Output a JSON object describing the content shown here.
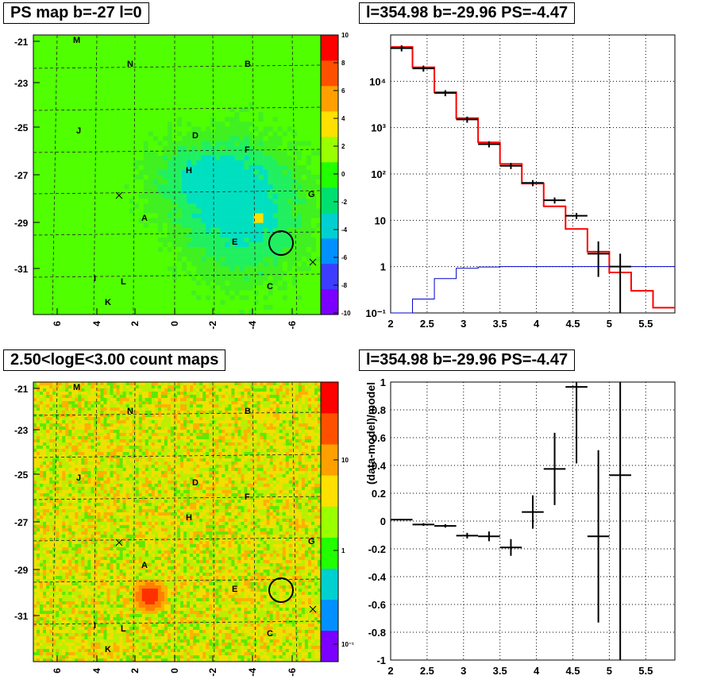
{
  "panels": {
    "ps_map_title": "PS map b=-27 l=0",
    "spectrum_title": "l=354.98 b=-29.96 PS=-4.47",
    "count_map_title": "2.50<logE<3.00 count maps",
    "residual_title": "l=354.98 b=-29.96 PS=-4.47"
  },
  "maps": {
    "x_ticks": [
      "6",
      "4",
      "2",
      "0",
      "-2",
      "-4",
      "-6"
    ],
    "y_ticks": [
      "-21",
      "-23",
      "-25",
      "-27",
      "-29",
      "-31"
    ],
    "source_letters": [
      "M",
      "N",
      "B",
      "J",
      "D",
      "F",
      "H",
      "G",
      "A",
      "E",
      "I",
      "L",
      "C",
      "K"
    ],
    "ps_colorbar_ticks": [
      "10",
      "8",
      "6",
      "4",
      "2",
      "0",
      "-2",
      "-4",
      "-6",
      "-8",
      "-10"
    ],
    "count_colorbar_ticks": [
      "10",
      "1",
      "10⁻¹"
    ],
    "ps_colors": [
      "#7a00ff",
      "#3d3dff",
      "#0090ff",
      "#00d0d0",
      "#00e070",
      "#22ff00",
      "#9aff00",
      "#ffe000",
      "#ffa000",
      "#ff5000",
      "#ff0000"
    ],
    "count_colors": [
      "#7a00ff",
      "#0090ff",
      "#00d0d0",
      "#22ff00",
      "#9aff00",
      "#ffe000",
      "#ffa000",
      "#ff5000",
      "#ff0000"
    ]
  },
  "chart_data": [
    {
      "type": "line",
      "title": "l=354.98 b=-29.96 PS=-4.47",
      "xlim": [
        2,
        5.9
      ],
      "ylim": [
        0.1,
        100000
      ],
      "log_y": true,
      "grid": true,
      "x_ticks": [
        "2",
        "2.5",
        "3",
        "3.5",
        "4",
        "4.5",
        "5",
        "5.5"
      ],
      "y_ticks": [
        "10⁻¹",
        "1",
        "10",
        "10²",
        "10³",
        "10⁴"
      ],
      "series": [
        {
          "color": "#ff0000",
          "step_edges": [
            2,
            2.3,
            2.6,
            2.9,
            3.2,
            3.5,
            3.8,
            4.1,
            4.4,
            4.7,
            5.0,
            5.3,
            5.6,
            5.9
          ],
          "values": [
            55000,
            20000,
            5800,
            1600,
            480,
            165,
            62,
            20,
            6.5,
            2.1,
            0.75,
            0.3,
            0.13
          ]
        },
        {
          "color": "#0000cc",
          "step_edges": [
            2,
            2.3,
            2.6,
            2.9,
            3.2,
            3.5,
            3.8,
            4.1,
            4.4,
            4.7,
            5.0,
            5.3,
            5.6,
            5.9
          ],
          "values": [
            0.1,
            0.2,
            0.55,
            0.92,
            0.98,
            1.0,
            1.0,
            1.0,
            1.0,
            1.0,
            1.0,
            1.0,
            1.0
          ]
        },
        {
          "color": "#000000",
          "points": [
            {
              "x": 2.15,
              "y": 52000
            },
            {
              "x": 2.45,
              "y": 19000
            },
            {
              "x": 2.75,
              "y": 5600
            },
            {
              "x": 3.05,
              "y": 1500
            },
            {
              "x": 3.35,
              "y": 440
            },
            {
              "x": 3.65,
              "y": 150
            },
            {
              "x": 3.95,
              "y": 64
            },
            {
              "x": 4.25,
              "y": 27
            },
            {
              "x": 4.55,
              "y": 12.5
            },
            {
              "x": 4.85,
              "y": 1.9,
              "lo": 0.6,
              "hi": 3.5
            },
            {
              "x": 5.15,
              "y": 1.0,
              "lo": 0.1,
              "hi": 1.9
            }
          ]
        }
      ]
    },
    {
      "type": "scatter",
      "title": "l=354.98 b=-29.96 PS=-4.47",
      "ylabel": "(data-model)/model",
      "xlim": [
        2,
        5.9
      ],
      "ylim": [
        -1,
        1
      ],
      "grid": true,
      "x_ticks": [
        "2",
        "2.5",
        "3",
        "3.5",
        "4",
        "4.5",
        "5",
        "5.5"
      ],
      "y_ticks": [
        "-1",
        "-0.8",
        "-0.6",
        "-0.4",
        "-0.2",
        "0",
        "0.2",
        "0.4",
        "0.6",
        "0.8",
        "1"
      ],
      "points": [
        {
          "x": 2.15,
          "y": 0.01,
          "err": 0.005
        },
        {
          "x": 2.45,
          "y": -0.025,
          "err": 0.01
        },
        {
          "x": 2.75,
          "y": -0.035,
          "err": 0.012
        },
        {
          "x": 3.05,
          "y": -0.105,
          "err": 0.02
        },
        {
          "x": 3.35,
          "y": -0.11,
          "err": 0.035
        },
        {
          "x": 3.65,
          "y": -0.19,
          "err": 0.06
        },
        {
          "x": 3.95,
          "y": 0.065,
          "err": 0.12
        },
        {
          "x": 4.25,
          "y": 0.375,
          "err": 0.26
        },
        {
          "x": 4.55,
          "y": 0.965,
          "err": 0.55
        },
        {
          "x": 4.85,
          "y": -0.11,
          "err": 0.62
        },
        {
          "x": 5.15,
          "y": 0.33,
          "err": 1.4
        }
      ]
    }
  ]
}
